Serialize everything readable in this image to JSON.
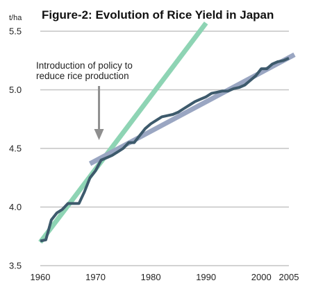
{
  "chart_data": {
    "type": "line",
    "title": "Figure-2: Evolution of Rice Yield in Japan",
    "y_unit_label": "t/ha",
    "xlabel": "",
    "ylabel": "",
    "xlim": [
      1960,
      2005
    ],
    "ylim": [
      3.5,
      5.5
    ],
    "x_ticks": [
      1960,
      1970,
      1980,
      1990,
      2000,
      2005
    ],
    "y_ticks": [
      "3.5",
      "4.0",
      "4.5",
      "5.0",
      "5.5"
    ],
    "grid": "horizontal",
    "annotation": {
      "lines": [
        "Introduction of policy to",
        "reduce rice production"
      ],
      "points_to_year": 1970
    },
    "series": [
      {
        "color": "#3d5a6c",
        "x": [
          1960,
          1961,
          1962,
          1963,
          1964,
          1965,
          1966,
          1967,
          1968,
          1969,
          1970,
          1971,
          1972,
          1973,
          1974,
          1975,
          1976,
          1977,
          1978,
          1979,
          1980,
          1981,
          1982,
          1983,
          1984,
          1985,
          1986,
          1987,
          1988,
          1989,
          1990,
          1991,
          1992,
          1993,
          1994,
          1995,
          1996,
          1997,
          1998,
          1999,
          2000,
          2001,
          2002,
          2003,
          2004,
          2005
        ],
        "values": [
          3.71,
          3.72,
          3.89,
          3.95,
          3.98,
          4.03,
          4.03,
          4.03,
          4.13,
          4.25,
          4.31,
          4.4,
          4.42,
          4.44,
          4.47,
          4.5,
          4.55,
          4.55,
          4.61,
          4.67,
          4.71,
          4.74,
          4.77,
          4.78,
          4.79,
          4.81,
          4.84,
          4.87,
          4.9,
          4.92,
          4.94,
          4.97,
          4.98,
          4.99,
          4.99,
          5.01,
          5.02,
          5.04,
          5.08,
          5.12,
          5.18,
          5.18,
          5.22,
          5.24,
          5.25,
          5.27
        ]
      },
      {
        "color": "#8ed4b4",
        "x": [
          1960,
          1990
        ],
        "values": [
          3.7,
          5.57
        ]
      },
      {
        "color": "#9aa6c2",
        "x": [
          1969,
          2006
        ],
        "values": [
          4.37,
          5.3
        ]
      }
    ]
  }
}
